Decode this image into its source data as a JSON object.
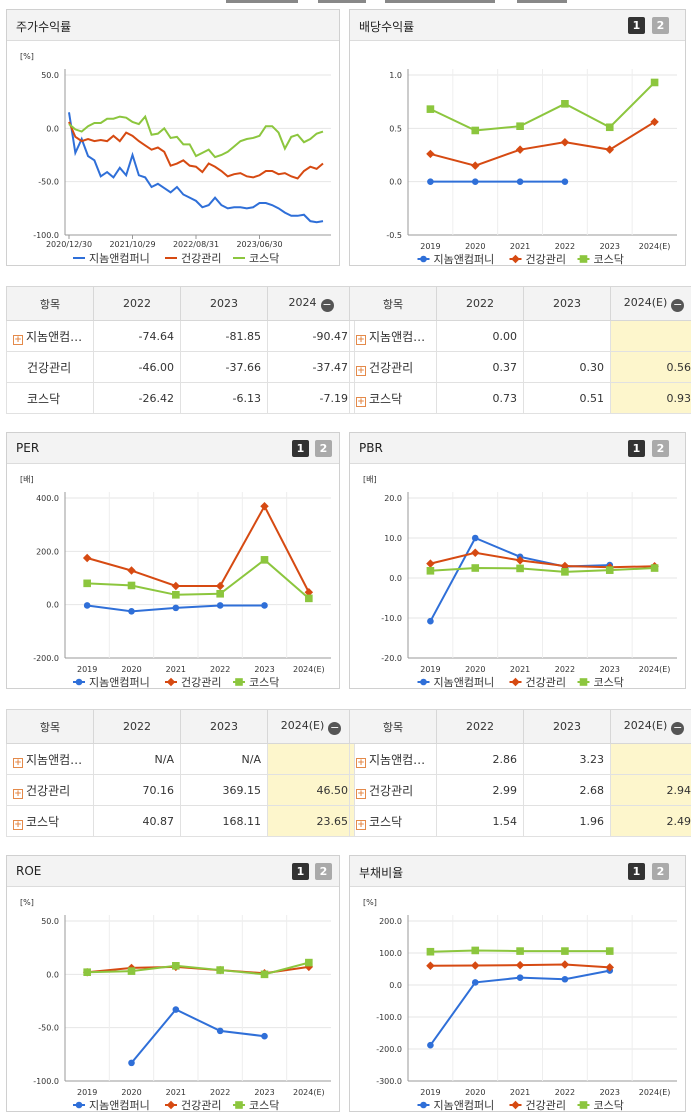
{
  "panels": [
    {
      "id": "p1",
      "title": "주가수익률",
      "buttons": []
    },
    {
      "id": "p2",
      "title": "배당수익률",
      "buttons": [
        "1",
        "2"
      ]
    },
    {
      "id": "p3",
      "title": "PER",
      "buttons": [
        "1",
        "2"
      ]
    },
    {
      "id": "p4",
      "title": "PBR",
      "buttons": [
        "1",
        "2"
      ]
    },
    {
      "id": "p5",
      "title": "ROE",
      "buttons": [
        "1",
        "2"
      ]
    },
    {
      "id": "p6",
      "title": "부채비율",
      "buttons": [
        "1",
        "2"
      ]
    }
  ],
  "colors": {
    "jinom": "#2f6fd8",
    "health": "#d64a12",
    "kosdaq": "#8cc63e"
  },
  "chart_data": [
    {
      "type": "line",
      "id": "c1",
      "unit": "[%]",
      "ylim": [
        -100,
        50
      ],
      "yticks": [
        "50.0",
        "0.0",
        "-50.0",
        "-100.0"
      ],
      "xticks": [
        "2020/12/30",
        "2021/10/29",
        "2022/08/31",
        "2023/06/30"
      ],
      "legend": [
        "지놈앤컴퍼니",
        "건강관리",
        "코스닥"
      ],
      "series": [
        {
          "name": "지놈앤컴퍼니",
          "values": [
            15,
            -23,
            -10,
            -26,
            -30,
            -45,
            -41,
            -46,
            -37,
            -44,
            -25,
            -44,
            -46,
            -55,
            -52,
            -56,
            -60,
            -55,
            -62,
            -65,
            -68,
            -74,
            -72,
            -65,
            -72,
            -75,
            -74,
            -74,
            -75,
            -74,
            -70,
            -70,
            -72,
            -75,
            -79,
            -82,
            -82,
            -81,
            -87,
            -88,
            -87
          ]
        },
        {
          "name": "건강관리",
          "values": [
            6,
            -8,
            -12,
            -10,
            -12,
            -11,
            -12,
            -7,
            -12,
            -4,
            -7,
            -12,
            -16,
            -20,
            -18,
            -22,
            -35,
            -33,
            -30,
            -35,
            -36,
            -41,
            -33,
            -36,
            -40,
            -45,
            -43,
            -42,
            -45,
            -46,
            -44,
            -40,
            -40,
            -43,
            -42,
            -45,
            -47,
            -40,
            -36,
            -38,
            -33
          ]
        },
        {
          "name": "코스닥",
          "values": [
            4,
            -1,
            -3,
            2,
            5,
            5,
            9,
            9,
            11,
            10,
            6,
            4,
            11,
            -6,
            -5,
            0,
            -9,
            -8,
            -15,
            -15,
            -26,
            -23,
            -20,
            -27,
            -25,
            -22,
            -17,
            -12,
            -10,
            -9,
            -7,
            2,
            2,
            -4,
            -19,
            -8,
            -6,
            -13,
            -10,
            -5,
            -3
          ]
        }
      ]
    },
    {
      "type": "line",
      "id": "c2",
      "unit": "",
      "ylim": [
        -0.5,
        1.0
      ],
      "yticks": [
        "1.0",
        "0.5",
        "0.0",
        "-0.5"
      ],
      "x": [
        "2019",
        "2020",
        "2021",
        "2022",
        "2023",
        "2024(E)"
      ],
      "legend": [
        "지놈앤컴퍼니",
        "건강관리",
        "코스닥"
      ],
      "series": [
        {
          "name": "지놈앤컴퍼니",
          "values": [
            0.0,
            0.0,
            0.0,
            0.0,
            null,
            null
          ]
        },
        {
          "name": "건강관리",
          "values": [
            0.26,
            0.15,
            0.3,
            0.37,
            0.3,
            0.56
          ]
        },
        {
          "name": "코스닥",
          "values": [
            0.68,
            0.48,
            0.52,
            0.73,
            0.51,
            0.93
          ]
        }
      ]
    },
    {
      "type": "line",
      "id": "c3",
      "unit": "[배]",
      "ylim": [
        -200,
        400
      ],
      "yticks": [
        "400.0",
        "200.0",
        "0.0",
        "-200.0"
      ],
      "x": [
        "2019",
        "2020",
        "2021",
        "2022",
        "2023",
        "2024(E)"
      ],
      "legend": [
        "지놈앤컴퍼니",
        "건강관리",
        "코스닥"
      ],
      "series": [
        {
          "name": "지놈앤컴퍼니",
          "values": [
            -3,
            -25,
            -12,
            -3,
            -3,
            null
          ]
        },
        {
          "name": "건강관리",
          "values": [
            175,
            128,
            70,
            70,
            369.15,
            46.5
          ]
        },
        {
          "name": "코스닥",
          "values": [
            80,
            72,
            37,
            40.87,
            168.11,
            23.65
          ]
        }
      ]
    },
    {
      "type": "line",
      "id": "c4",
      "unit": "[배]",
      "ylim": [
        -20,
        20
      ],
      "yticks": [
        "20.0",
        "10.0",
        "0.0",
        "-10.0",
        "-20.0"
      ],
      "x": [
        "2019",
        "2020",
        "2021",
        "2022",
        "2023",
        "2024(E)"
      ],
      "legend": [
        "지놈앤컴퍼니",
        "건강관리",
        "코스닥"
      ],
      "series": [
        {
          "name": "지놈앤컴퍼니",
          "values": [
            -10.8,
            10.0,
            5.3,
            2.86,
            3.23,
            null
          ]
        },
        {
          "name": "건강관리",
          "values": [
            3.6,
            6.3,
            4.4,
            2.99,
            2.68,
            2.94
          ]
        },
        {
          "name": "코스닥",
          "values": [
            1.8,
            2.5,
            2.4,
            1.54,
            1.96,
            2.49
          ]
        }
      ]
    },
    {
      "type": "line",
      "id": "c5",
      "unit": "[%]",
      "ylim": [
        -100,
        50
      ],
      "yticks": [
        "50.0",
        "0.0",
        "-50.0",
        "-100.0"
      ],
      "x": [
        "2019",
        "2020",
        "2021",
        "2022",
        "2023",
        "2024(E)"
      ],
      "legend": [
        "지놈앤컴퍼니",
        "건강관리",
        "코스닥"
      ],
      "series": [
        {
          "name": "지놈앤컴퍼니",
          "values": [
            null,
            -83,
            -33,
            -53,
            -58,
            null
          ]
        },
        {
          "name": "건강관리",
          "values": [
            2,
            6,
            7,
            4,
            1,
            7
          ]
        },
        {
          "name": "코스닥",
          "values": [
            2,
            3,
            8,
            4,
            0,
            11
          ]
        }
      ]
    },
    {
      "type": "line",
      "id": "c6",
      "unit": "[%]",
      "ylim": [
        -300,
        200
      ],
      "yticks": [
        "200.0",
        "100.0",
        "0.0",
        "-100.0",
        "-200.0",
        "-300.0"
      ],
      "x": [
        "2019",
        "2020",
        "2021",
        "2022",
        "2023",
        "2024(E)"
      ],
      "legend": [
        "지놈앤컴퍼니",
        "건강관리",
        "코스닥"
      ],
      "series": [
        {
          "name": "지놈앤컴퍼니",
          "values": [
            -188,
            8,
            23,
            18,
            45,
            null
          ]
        },
        {
          "name": "건강관리",
          "values": [
            60,
            61,
            62,
            64,
            55,
            null
          ]
        },
        {
          "name": "코스닥",
          "values": [
            104,
            108,
            106,
            106,
            106,
            null
          ]
        }
      ]
    }
  ],
  "tables": [
    {
      "id": "t1",
      "head": [
        "항목",
        "2022",
        "2023",
        "2024"
      ],
      "hl": false,
      "rows": [
        {
          "name": "지놈앤컴…",
          "plus": true,
          "v": [
            "-74.64",
            "-81.85",
            "-90.47"
          ]
        },
        {
          "name": "건강관리",
          "plus": false,
          "v": [
            "-46.00",
            "-37.66",
            "-37.47"
          ]
        },
        {
          "name": "코스닥",
          "plus": false,
          "v": [
            "-26.42",
            "-6.13",
            "-7.19"
          ]
        }
      ]
    },
    {
      "id": "t2",
      "head": [
        "항목",
        "2022",
        "2023",
        "2024(E)"
      ],
      "hl": true,
      "rows": [
        {
          "name": "지놈앤컴…",
          "plus": true,
          "v": [
            "0.00",
            "",
            ""
          ]
        },
        {
          "name": "건강관리",
          "plus": true,
          "v": [
            "0.37",
            "0.30",
            "0.56"
          ]
        },
        {
          "name": "코스닥",
          "plus": true,
          "v": [
            "0.73",
            "0.51",
            "0.93"
          ]
        }
      ]
    },
    {
      "id": "t3",
      "head": [
        "항목",
        "2022",
        "2023",
        "2024(E)"
      ],
      "hl": true,
      "rows": [
        {
          "name": "지놈앤컴…",
          "plus": true,
          "v": [
            "N/A",
            "N/A",
            ""
          ]
        },
        {
          "name": "건강관리",
          "plus": true,
          "v": [
            "70.16",
            "369.15",
            "46.50"
          ]
        },
        {
          "name": "코스닥",
          "plus": true,
          "v": [
            "40.87",
            "168.11",
            "23.65"
          ]
        }
      ]
    },
    {
      "id": "t4",
      "head": [
        "항목",
        "2022",
        "2023",
        "2024(E)"
      ],
      "hl": true,
      "rows": [
        {
          "name": "지놈앤컴…",
          "plus": true,
          "v": [
            "2.86",
            "3.23",
            ""
          ]
        },
        {
          "name": "건강관리",
          "plus": true,
          "v": [
            "2.99",
            "2.68",
            "2.94"
          ]
        },
        {
          "name": "코스닥",
          "plus": true,
          "v": [
            "1.54",
            "1.96",
            "2.49"
          ]
        }
      ]
    }
  ]
}
